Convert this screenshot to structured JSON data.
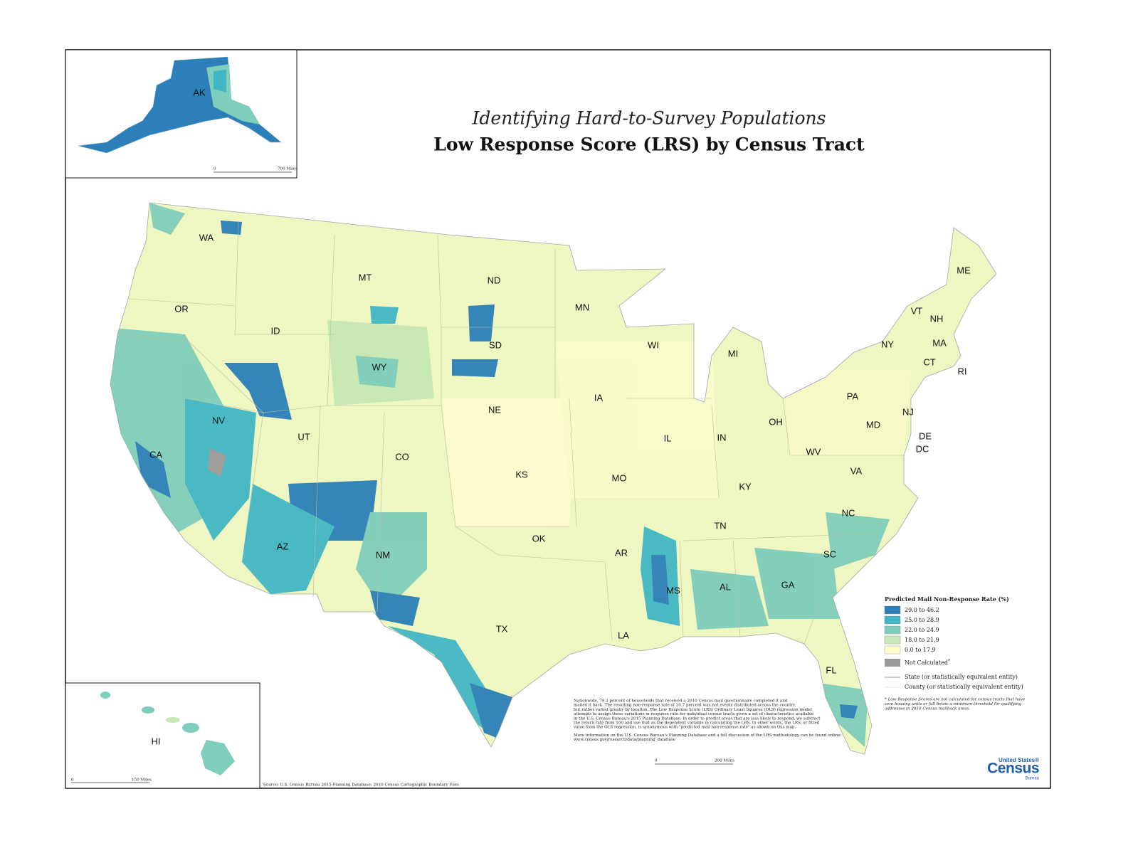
{
  "title": {
    "subtitle": "Identifying Hard-to-Survey Populations",
    "main": "Low Response Score (LRS) by Census Tract"
  },
  "state_labels": [
    "WA",
    "MT",
    "ND",
    "MN",
    "OR",
    "ID",
    "WI",
    "MI",
    "SD",
    "WY",
    "NY",
    "VT",
    "NH",
    "ME",
    "MA",
    "CT",
    "RI",
    "PA",
    "NJ",
    "IA",
    "NE",
    "NV",
    "UT",
    "CO",
    "IL",
    "IN",
    "OH",
    "MD",
    "DE",
    "DC",
    "WV",
    "CA",
    "KS",
    "MO",
    "KY",
    "VA",
    "NC",
    "TN",
    "OK",
    "AR",
    "SC",
    "AZ",
    "NM",
    "MS",
    "AL",
    "GA",
    "TX",
    "LA",
    "FL"
  ],
  "insets": {
    "alaska": {
      "label": "AK",
      "scale_start": "0",
      "scale_end": "700 Miles"
    },
    "hawaii": {
      "label": "HI",
      "scale_start": "0",
      "scale_end": "150 Miles"
    }
  },
  "legend": {
    "title": "Predicted Mail Non-Response Rate (%)",
    "classes": [
      {
        "label": "29.0 to 46.2",
        "color": "#2c7fb8"
      },
      {
        "label": "25.0 to 28.9",
        "color": "#41b6c4"
      },
      {
        "label": "22.0 to 24.9",
        "color": "#7fcdbb"
      },
      {
        "label": "18.0 to 21.9",
        "color": "#c7e9b4"
      },
      {
        "label": "0.0 to 17.9",
        "color": "#ffffcc"
      }
    ],
    "not_calculated": {
      "label": "Not Calculated",
      "mark": "*",
      "color": "#999999"
    },
    "boundaries": [
      "State (or statistically equivalent entity)",
      "County (or statistically equivalent entity)"
    ],
    "footnote": [
      "* Low Response Scores are not calculated for census tracts that have",
      "zero housing units or fall below a minimum threshold for qualifying",
      "addresses in 2010 Census mailback areas."
    ]
  },
  "scale": {
    "start": "0",
    "end": "200 Miles"
  },
  "notes": [
    [
      "Nationwide, 79.3 percent of households that received a 2010 Census mail questionnaire completed it and",
      "mailed it back.  The resulting non-response rate of 20.7 percent was not evenly distributed across the country,",
      "but rather varied greatly by location.  The Low Response Score (LRS) Ordinary Least Squares (OLS) regression model",
      "attempts to assign these variations in response rate for individual census tracts given a set of characteristics available",
      "in the U.S. Census Bureau's 2015 Planning Database.  In order to predict areas that are less likely to respond, we subtract",
      "the return rate from 100 and use that as the dependent variable in calculating the LRS.  In other words, the LRS, or fitted",
      "value from the OLS regression, is synonymous with \"predicted mail non-response rate\" as shown on this map."
    ],
    [
      "More information on the U.S. Census Bureau's Planning Database and a full discussion of the LRS methodology can be found online:",
      "www.census.gov/research/data/planning_database"
    ]
  ],
  "source": "Source:  U.S. Census Bureau 2015 Planning Database; 2010 Census Cartographic Boundary Files",
  "logo": {
    "top": "United States®",
    "name": "Census",
    "bottom": "Bureau"
  }
}
